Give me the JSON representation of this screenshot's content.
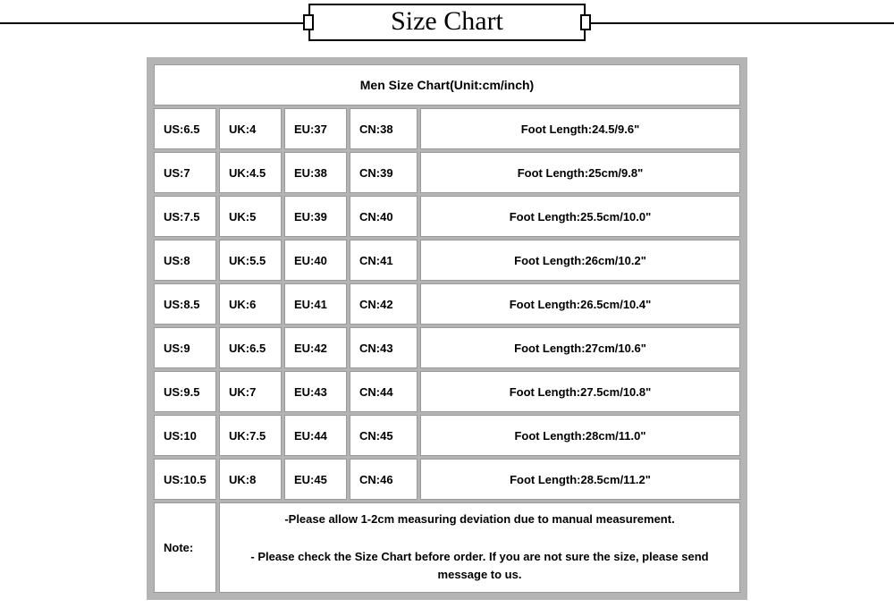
{
  "banner": {
    "title": "Size Chart"
  },
  "table": {
    "header": "Men Size Chart(Unit:cm/inch)",
    "border_color": "#b4b4b4",
    "cell_bg": "#ffffff",
    "cell_border": "#9a9a9a",
    "font_size_body": 13,
    "font_size_header": 14,
    "font_weight": "bold",
    "columns": [
      "US",
      "UK",
      "EU",
      "CN",
      "Foot Length"
    ],
    "rows": [
      {
        "us": "US:6.5",
        "uk": "UK:4",
        "eu": "EU:37",
        "cn": "CN:38",
        "foot": "Foot Length:24.5/9.6\""
      },
      {
        "us": "US:7",
        "uk": "UK:4.5",
        "eu": "EU:38",
        "cn": "CN:39",
        "foot": "Foot Length:25cm/9.8\""
      },
      {
        "us": "US:7.5",
        "uk": "UK:5",
        "eu": "EU:39",
        "cn": "CN:40",
        "foot": "Foot Length:25.5cm/10.0\""
      },
      {
        "us": "US:8",
        "uk": "UK:5.5",
        "eu": "EU:40",
        "cn": "CN:41",
        "foot": "Foot Length:26cm/10.2\""
      },
      {
        "us": "US:8.5",
        "uk": "UK:6",
        "eu": "EU:41",
        "cn": "CN:42",
        "foot": "Foot Length:26.5cm/10.4\""
      },
      {
        "us": "US:9",
        "uk": "UK:6.5",
        "eu": "EU:42",
        "cn": "CN:43",
        "foot": "Foot Length:27cm/10.6\""
      },
      {
        "us": "US:9.5",
        "uk": "UK:7",
        "eu": "EU:43",
        "cn": "CN:44",
        "foot": "Foot Length:27.5cm/10.8\""
      },
      {
        "us": "US:10",
        "uk": "UK:7.5",
        "eu": "EU:44",
        "cn": "CN:45",
        "foot": "Foot Length:28cm/11.0\""
      },
      {
        "us": "US:10.5",
        "uk": "UK:8",
        "eu": "EU:45",
        "cn": "CN:46",
        "foot": "Foot Length:28.5cm/11.2\""
      }
    ],
    "note_label": "Note:",
    "note_line1": "-Please allow 1-2cm measuring deviation due to manual measurement.",
    "note_line2": "- Please check the Size Chart before order. If you are not sure the size, please send message to us."
  }
}
